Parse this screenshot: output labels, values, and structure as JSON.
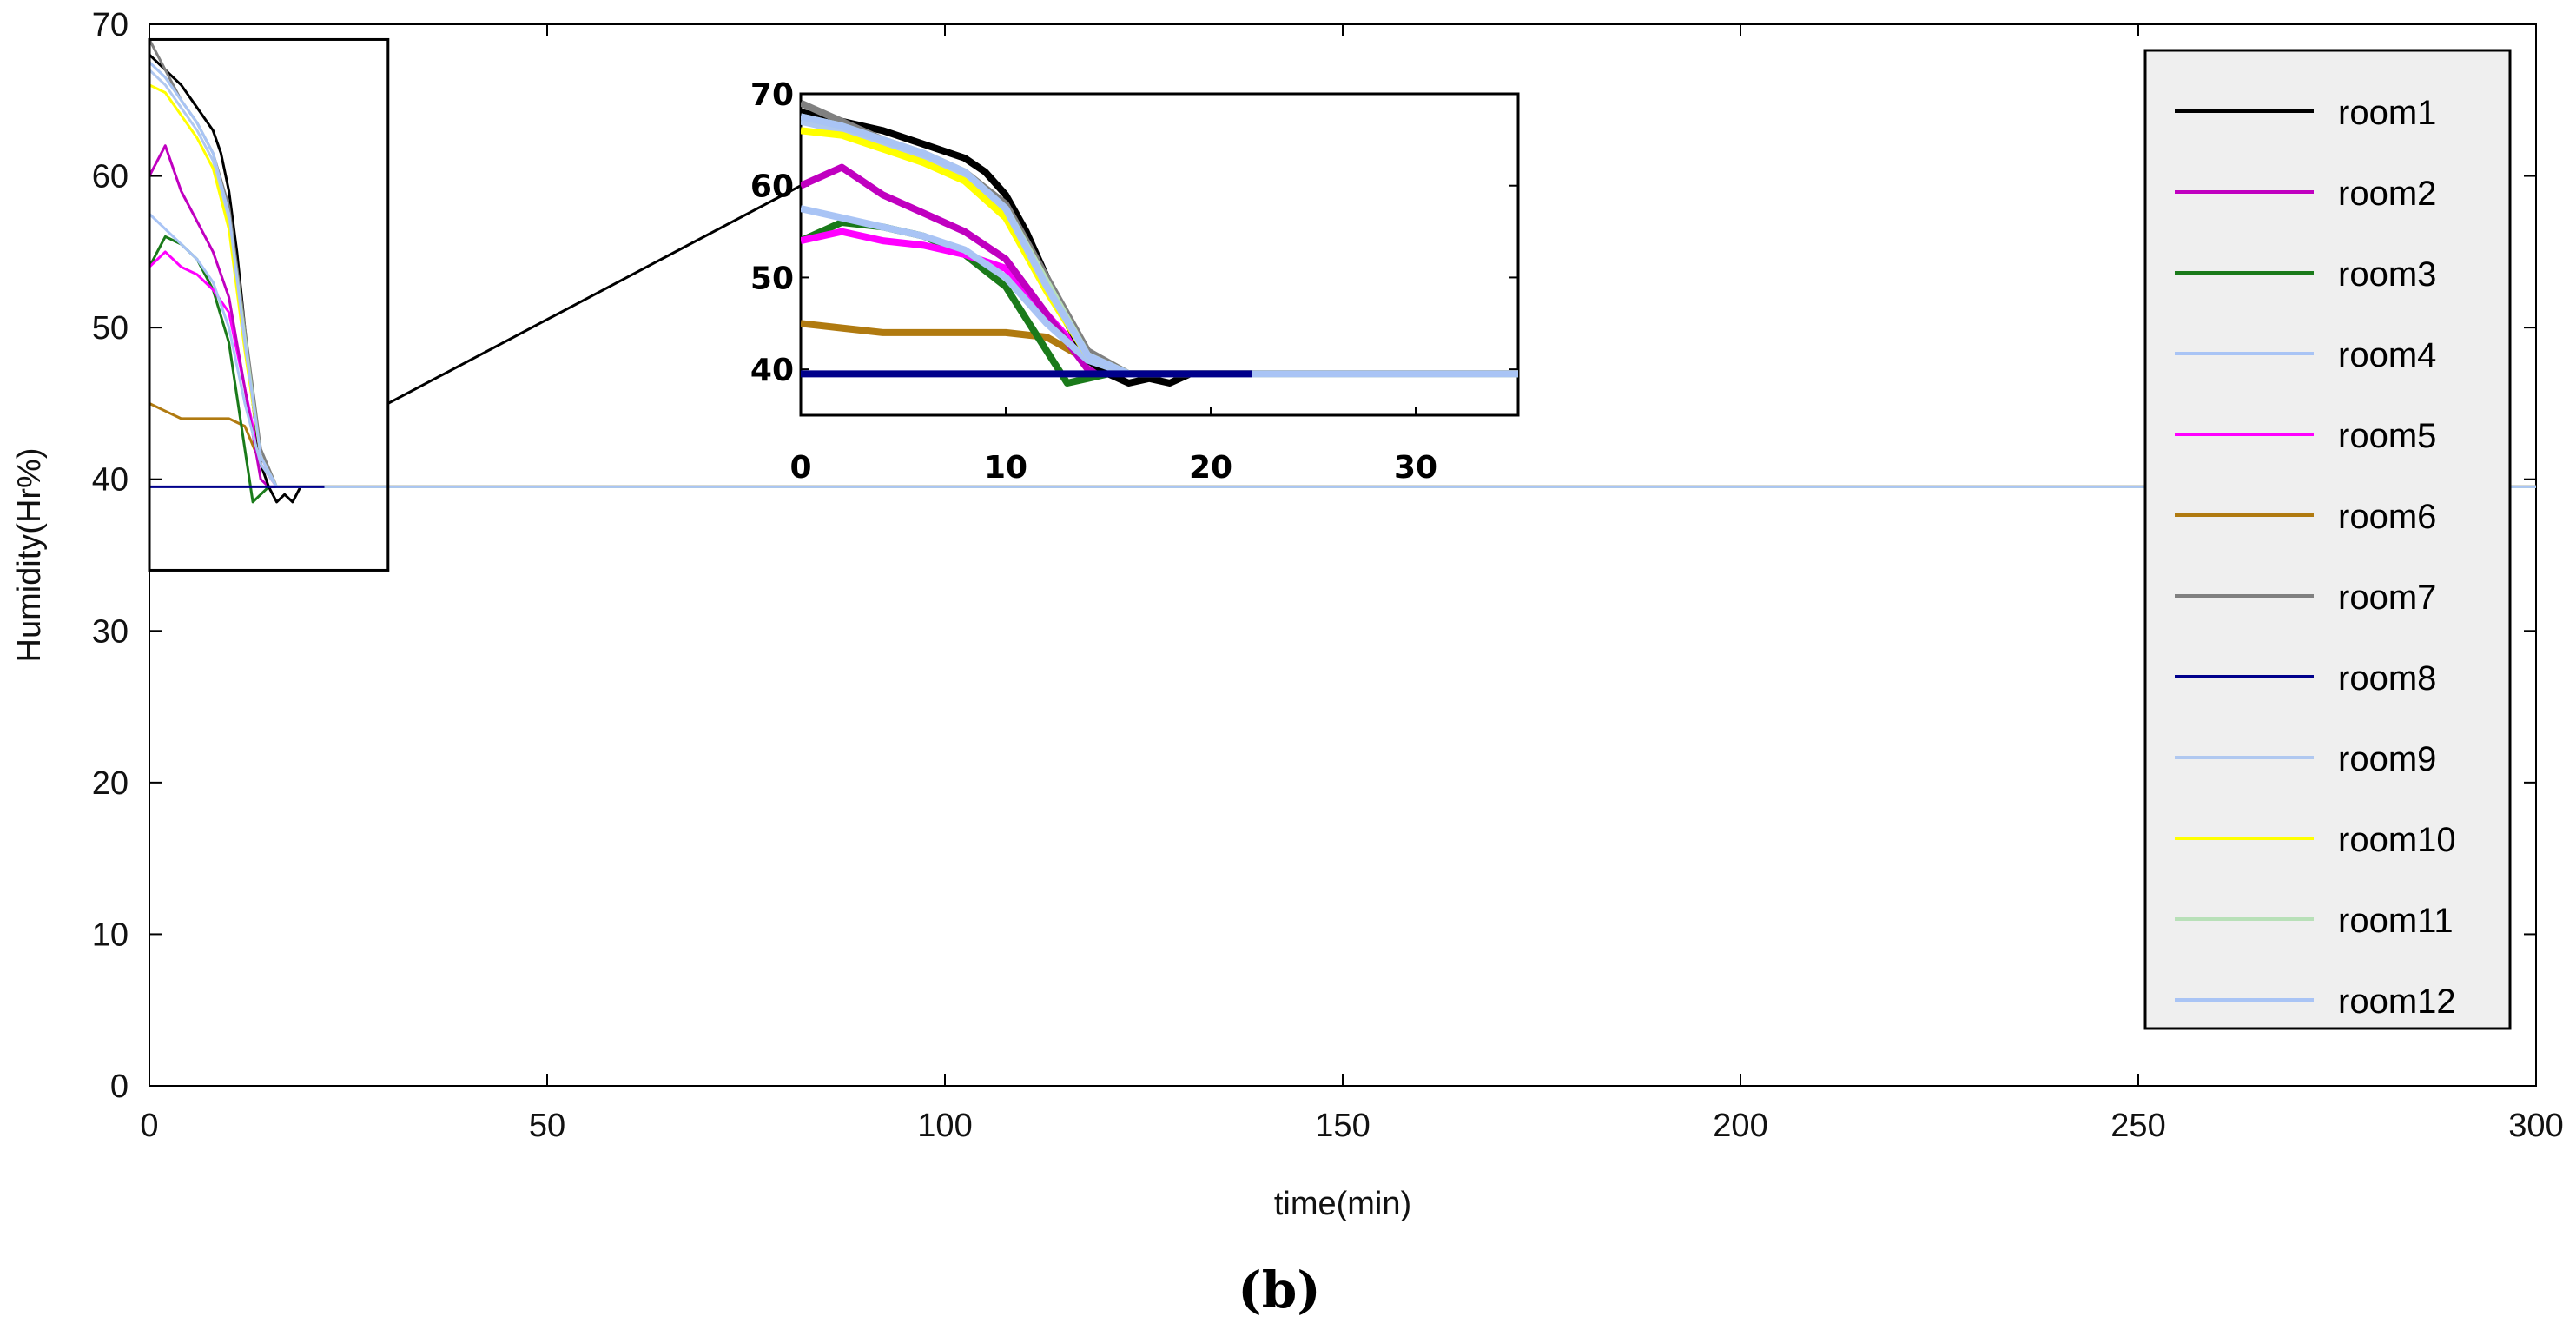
{
  "caption": "(b)",
  "chart_data": {
    "type": "line",
    "xlabel": "time(min)",
    "ylabel": "Humidity(Hr%)",
    "xlim": [
      0,
      300
    ],
    "ylim": [
      0,
      70
    ],
    "xticks": [
      "0",
      "50",
      "100",
      "150",
      "200",
      "250",
      "300"
    ],
    "yticks": [
      "0",
      "10",
      "20",
      "30",
      "40",
      "50",
      "60",
      "70"
    ],
    "grid": false,
    "legend_position": "top-right",
    "series": [
      {
        "name": "room1",
        "color": "#000000",
        "x": [
          0,
          2,
          4,
          6,
          8,
          9,
          10,
          11,
          12,
          13,
          14,
          15,
          16,
          17,
          18,
          19,
          300
        ],
        "y": [
          68,
          67,
          66,
          64.5,
          63,
          61.5,
          59,
          55,
          50,
          45,
          41,
          39.5,
          38.5,
          39,
          38.5,
          39.5,
          39.5
        ]
      },
      {
        "name": "room2",
        "color": "#c000c0",
        "x": [
          0,
          2,
          4,
          6,
          8,
          10,
          12,
          14,
          15,
          300
        ],
        "y": [
          60,
          62,
          59,
          57,
          55,
          52,
          46,
          40,
          39.5,
          39.5
        ]
      },
      {
        "name": "room3",
        "color": "#1a7a1a",
        "x": [
          0,
          2,
          4,
          6,
          8,
          10,
          12,
          13,
          14,
          15,
          300
        ],
        "y": [
          54,
          56,
          55.5,
          54.5,
          52.5,
          49,
          42,
          38.5,
          39,
          39.5,
          39.5
        ]
      },
      {
        "name": "room4",
        "color": "#a9c4f5",
        "x": [
          0,
          2,
          4,
          6,
          8,
          10,
          12,
          14,
          16,
          300
        ],
        "y": [
          57.5,
          56.5,
          55.5,
          54.5,
          53,
          50,
          45,
          41,
          39.5,
          39.5
        ]
      },
      {
        "name": "room5",
        "color": "#ff00ff",
        "x": [
          0,
          2,
          4,
          6,
          8,
          10,
          12,
          14,
          16,
          300
        ],
        "y": [
          54,
          55,
          54,
          53.5,
          52.5,
          51,
          46,
          41,
          39.5,
          39.5
        ]
      },
      {
        "name": "room6",
        "color": "#b07a10",
        "x": [
          0,
          2,
          4,
          6,
          8,
          10,
          12,
          14,
          16,
          300
        ],
        "y": [
          45,
          44.5,
          44,
          44,
          44,
          44,
          43.5,
          41,
          39.5,
          39.5
        ]
      },
      {
        "name": "room7",
        "color": "#808080",
        "x": [
          0,
          2,
          4,
          6,
          8,
          10,
          12,
          14,
          16,
          300
        ],
        "y": [
          69,
          67,
          65,
          63.5,
          61.5,
          58,
          50,
          42,
          39.5,
          39.5
        ]
      },
      {
        "name": "room8",
        "color": "#00008b",
        "x": [
          0,
          12,
          14,
          16,
          18,
          20,
          22
        ],
        "y": [
          39.5,
          39.5,
          39.5,
          39.5,
          39.5,
          39.5,
          39.5
        ]
      },
      {
        "name": "room9",
        "color": "#b0c8f0",
        "x": [
          0,
          2,
          4,
          6,
          8,
          10,
          12,
          14,
          16,
          300
        ],
        "y": [
          67,
          66,
          64.5,
          63,
          61,
          57,
          49,
          41.5,
          39.5,
          39.5
        ]
      },
      {
        "name": "room10",
        "color": "#ffff00",
        "x": [
          0,
          2,
          4,
          6,
          8,
          10,
          12,
          14,
          16,
          300
        ],
        "y": [
          66,
          65.5,
          64,
          62.5,
          60.5,
          56.5,
          48.5,
          41.5,
          39.5,
          39.5
        ]
      },
      {
        "name": "room11",
        "color": "#b8e0b8",
        "x": [
          0,
          2,
          4,
          6,
          8,
          10,
          12,
          14,
          16,
          300
        ],
        "y": [
          67.5,
          66.5,
          65,
          63.5,
          61.5,
          57.5,
          49.5,
          41.5,
          39.5,
          39.5
        ]
      },
      {
        "name": "room12",
        "color": "#a9c4f5",
        "x": [
          0,
          2,
          4,
          6,
          8,
          10,
          12,
          14,
          16,
          30,
          38,
          300
        ],
        "y": [
          67.5,
          66.5,
          65,
          63.5,
          61.5,
          57.5,
          49,
          41.5,
          39.5,
          39.5,
          39.5,
          39.5
        ]
      }
    ],
    "inset": {
      "xlim": [
        0,
        35
      ],
      "ylim": [
        35,
        70
      ],
      "xticks": [
        "0",
        "10",
        "20",
        "30"
      ],
      "yticks": [
        "40",
        "50",
        "60",
        "70"
      ],
      "zoom_region": {
        "x": [
          0,
          30
        ],
        "y": [
          34,
          69
        ]
      }
    }
  }
}
